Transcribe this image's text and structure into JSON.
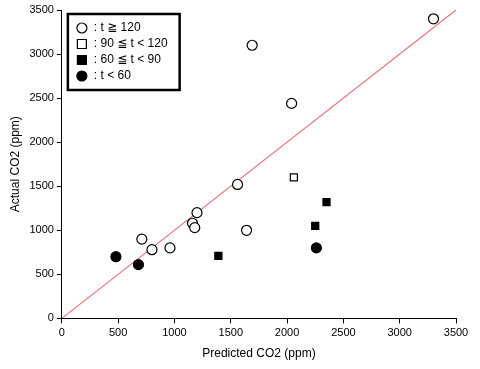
{
  "chart_data": {
    "type": "scatter",
    "x_label": "Predicted CO2 (ppm)",
    "y_label": "Actual CO2 (ppm)",
    "xlim": [
      0,
      3500
    ],
    "xticks": [
      0,
      500,
      1000,
      1500,
      2000,
      2500,
      3000,
      3500
    ],
    "ylim": [
      0,
      3500
    ],
    "yticks": [
      0,
      500,
      1000,
      1500,
      2000,
      2500,
      3000,
      3500
    ],
    "grid": false,
    "legend": "upper left",
    "series": [
      {
        "name": ": t ≧ 120",
        "color": "#000000",
        "marker": "circle-open",
        "x": [
          3300,
          1690,
          2040,
          1560,
          1640,
          1200,
          1160,
          1180,
          960,
          800,
          710
        ],
        "values": [
          3400,
          3100,
          2440,
          1520,
          1000,
          1200,
          1080,
          1030,
          800,
          780,
          900
        ]
      },
      {
        "name": ": 90 ≦ t < 120",
        "color": "#000000",
        "marker": "square-open",
        "x": [
          2060
        ],
        "values": [
          1600
        ]
      },
      {
        "name": ": 60 ≦ t < 90",
        "color": "#000000",
        "marker": "square",
        "x": [
          1390,
          2250,
          2350
        ],
        "values": [
          710,
          1050,
          1320
        ]
      },
      {
        "name": ": t < 60",
        "color": "#000000",
        "marker": "circle",
        "x": [
          480,
          680,
          2260
        ],
        "values": [
          700,
          610,
          800
        ]
      }
    ],
    "diagonal": {
      "x": [
        0,
        3500
      ],
      "y": [
        0,
        3500
      ],
      "color": "#e8707a"
    }
  }
}
